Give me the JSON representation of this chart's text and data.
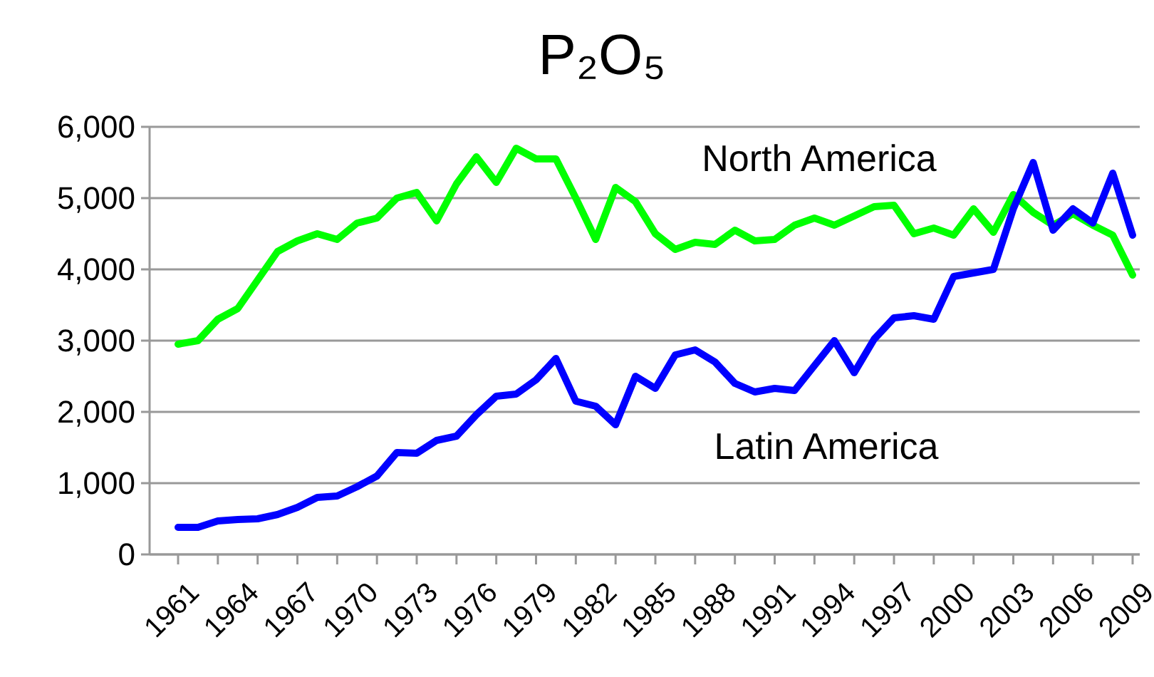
{
  "chart_data": {
    "type": "line",
    "title": "P₂O₅",
    "categories": [
      "1961",
      null,
      null,
      "1964",
      null,
      null,
      "1967",
      null,
      null,
      "1970",
      null,
      null,
      "1973",
      null,
      null,
      "1976",
      null,
      null,
      "1979",
      null,
      null,
      "1982",
      null,
      null,
      "1985",
      null,
      null,
      "1988",
      null,
      null,
      "1991",
      null,
      null,
      "1994",
      null,
      null,
      "1997",
      null,
      null,
      "2000",
      null,
      null,
      "2003",
      null,
      null,
      "2006",
      null,
      null,
      "2009"
    ],
    "series": [
      {
        "name": "North America",
        "color": "#00ff00",
        "values": [
          2950,
          3000,
          3300,
          3450,
          3850,
          4250,
          4400,
          4500,
          4420,
          4650,
          4720,
          5000,
          5080,
          4680,
          5200,
          5580,
          5220,
          5700,
          5550,
          5550,
          5000,
          4420,
          5150,
          4950,
          4500,
          4280,
          4380,
          4350,
          4550,
          4400,
          4420,
          4620,
          4720,
          4620,
          4750,
          4880,
          4900,
          4500,
          4580,
          4480,
          4850,
          4520,
          5050,
          4800,
          4620,
          4780,
          4620,
          4480,
          3920
        ]
      },
      {
        "name": "Latin America",
        "color": "#0000ff",
        "values": [
          380,
          380,
          470,
          490,
          500,
          560,
          660,
          800,
          820,
          950,
          1100,
          1430,
          1420,
          1600,
          1660,
          1960,
          2220,
          2250,
          2450,
          2750,
          2150,
          2080,
          1820,
          2500,
          2330,
          2800,
          2870,
          2700,
          2400,
          2280,
          2330,
          2300,
          2650,
          3000,
          2550,
          3020,
          3320,
          3350,
          3300,
          3900,
          3950,
          4000,
          4850,
          5500,
          4550,
          4850,
          4650,
          5350,
          4480
        ]
      }
    ],
    "ylim": [
      0,
      6000
    ],
    "yticks": [
      {
        "value": 0,
        "label": "0"
      },
      {
        "value": 1000,
        "label": "1,000"
      },
      {
        "value": 2000,
        "label": "2,000"
      },
      {
        "value": 3000,
        "label": "3,000"
      },
      {
        "value": 4000,
        "label": "4,000"
      },
      {
        "value": 5000,
        "label": "5,000"
      },
      {
        "value": 6000,
        "label": "6,000"
      }
    ],
    "grid": "y",
    "marker": "none",
    "line_style": "solid"
  }
}
